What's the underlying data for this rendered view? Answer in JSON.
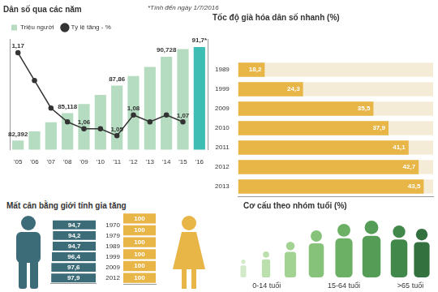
{
  "chart_data": [
    {
      "type": "bar",
      "title": "Dân số qua các năm",
      "annotations": [
        "*Tính đến ngày 1/7/2016"
      ],
      "categories": [
        "'05",
        "'06",
        "'07",
        "'08",
        "'09",
        "'10",
        "'11",
        "'12",
        "'13",
        "'14",
        "'15",
        "'16"
      ],
      "series": [
        {
          "name": "Triệu người",
          "type": "bar",
          "colors": [
            "#b5dcc0",
            "#b5dcc0",
            "#b5dcc0",
            "#b5dcc0",
            "#b5dcc0",
            "#b5dcc0",
            "#b5dcc0",
            "#b5dcc0",
            "#b5dcc0",
            "#b5dcc0",
            "#b5dcc0",
            "#3dbdb3"
          ],
          "values": [
            82.392,
            83.313,
            84.222,
            85.118,
            86.025,
            86.933,
            87.86,
            88.809,
            89.709,
            90.728,
            91.5,
            91.7
          ],
          "value_labels": [
            "82,392",
            null,
            null,
            "85,118",
            null,
            null,
            "87,86",
            null,
            null,
            "90,728",
            null,
            "91,7*"
          ]
        },
        {
          "name": "Tỷ lệ tăng - %",
          "type": "line",
          "color": "#333333",
          "marker": "circle",
          "axis": "y2",
          "values": [
            1.17,
            1.13,
            1.09,
            1.07,
            1.06,
            1.06,
            1.05,
            1.08,
            1.07,
            1.08,
            1.07,
            null
          ],
          "value_labels": [
            "1,17",
            null,
            null,
            null,
            "1,06",
            null,
            "1,05",
            "1,08",
            null,
            null,
            "1,07",
            null
          ]
        }
      ],
      "ylim": [
        81.5,
        92.5
      ],
      "yticks": [],
      "y2lim": [
        1.03,
        1.19
      ],
      "y2ticks": [],
      "grid": false,
      "legend": "top-left",
      "data_labels": true,
      "tick_labels": "x"
    },
    {
      "type": "bar",
      "orientation": "horizontal",
      "title": "Tốc độ già hóa dân số nhanh (%)",
      "categories": [
        "1989",
        "1999",
        "2009",
        "2010",
        "2011",
        "2012",
        "2013"
      ],
      "values": [
        18.2,
        24.3,
        35.5,
        37.9,
        41.1,
        42.7,
        43.5
      ],
      "value_labels": [
        "18,2",
        "24,3",
        "35,5",
        "37,9",
        "41,1",
        "42,7",
        "43,5"
      ],
      "color": "#e8b547",
      "xlim": [
        14,
        45
      ],
      "xticks": [],
      "grid": false,
      "data_labels": true,
      "tick_labels": "y"
    },
    {
      "type": "bar",
      "orientation": "horizontal",
      "title": "Mất cân bằng giới tính gia tăng",
      "categories": [
        "1970",
        "1979",
        "1989",
        "1999",
        "2009",
        "2012"
      ],
      "series": [
        {
          "color": "#3d6c79",
          "values": [
            94.7,
            94.2,
            94.7,
            96.4,
            97.6,
            97.9
          ],
          "value_labels": [
            "94,7",
            "94,2",
            "94,7",
            "96,4",
            "97,6",
            "97,9"
          ]
        },
        {
          "color": "#e8b547",
          "values": [
            100,
            100,
            100,
            100,
            100,
            100
          ]
        }
      ],
      "xlim": [
        0,
        100
      ],
      "xticks": [],
      "grid": false,
      "data_labels": true,
      "tick_labels": "y"
    }
  ],
  "age_structure": {
    "title": "Cơ cấu theo nhóm tuổi (%)",
    "groups": [
      "0-14 tuổi",
      "15-64 tuổi",
      ">65 tuổi"
    ]
  }
}
